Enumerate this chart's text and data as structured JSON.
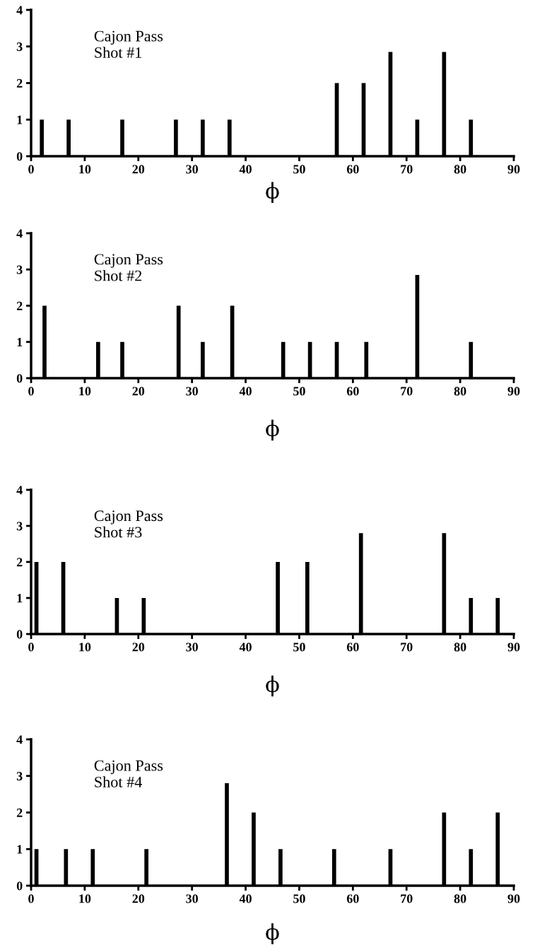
{
  "chart_data": [
    {
      "type": "bar",
      "x": [
        2,
        7,
        17,
        27,
        32,
        37,
        57,
        62,
        67,
        72,
        77,
        82
      ],
      "values": [
        1,
        1,
        1,
        1,
        1,
        1,
        2,
        2,
        2.85,
        1,
        2.85,
        1
      ],
      "color": "#000000",
      "xlim": [
        0,
        90
      ],
      "xticks": [
        0,
        10,
        20,
        30,
        40,
        50,
        60,
        70,
        80,
        90
      ],
      "ylim": [
        0,
        4
      ],
      "yticks": [
        0,
        1,
        2,
        3,
        4
      ],
      "xlabel": "ϕ",
      "annotations": [
        "Cajon Pass\nShot #1"
      ],
      "grid": false
    },
    {
      "type": "bar",
      "x": [
        2.5,
        12.5,
        17,
        27.5,
        32,
        37.5,
        47,
        52,
        57,
        62.5,
        72,
        82
      ],
      "values": [
        2,
        1,
        1,
        2,
        1,
        2,
        1,
        1,
        1,
        1,
        2.85,
        1
      ],
      "color": "#000000",
      "xlim": [
        0,
        90
      ],
      "xticks": [
        0,
        10,
        20,
        30,
        40,
        50,
        60,
        70,
        80,
        90
      ],
      "ylim": [
        0,
        4
      ],
      "yticks": [
        0,
        1,
        2,
        3,
        4
      ],
      "xlabel": "ϕ",
      "annotations": [
        "Cajon Pass\nShot #2"
      ],
      "grid": false
    },
    {
      "type": "bar",
      "x": [
        1,
        6,
        16,
        21,
        46,
        51.5,
        61.5,
        77,
        82,
        87
      ],
      "values": [
        2,
        2,
        1,
        1,
        2,
        2,
        2.8,
        2.8,
        1,
        1
      ],
      "color": "#000000",
      "xlim": [
        0,
        90
      ],
      "xticks": [
        0,
        10,
        20,
        30,
        40,
        50,
        60,
        70,
        80,
        90
      ],
      "ylim": [
        0,
        4
      ],
      "yticks": [
        0,
        1,
        2,
        3,
        4
      ],
      "xlabel": "ϕ",
      "annotations": [
        "Cajon Pass\nShot #3"
      ],
      "grid": false
    },
    {
      "type": "bar",
      "x": [
        1,
        6.5,
        11.5,
        21.5,
        36.5,
        41.5,
        46.5,
        56.5,
        67,
        77,
        82,
        87
      ],
      "values": [
        1,
        1,
        1,
        1,
        2.8,
        2,
        1,
        1,
        1,
        2,
        1,
        2
      ],
      "color": "#000000",
      "xlim": [
        0,
        90
      ],
      "xticks": [
        0,
        10,
        20,
        30,
        40,
        50,
        60,
        70,
        80,
        90
      ],
      "ylim": [
        0,
        4
      ],
      "yticks": [
        0,
        1,
        2,
        3,
        4
      ],
      "xlabel": "ϕ",
      "annotations": [
        "Cajon Pass\nShot #4"
      ],
      "grid": false
    }
  ]
}
